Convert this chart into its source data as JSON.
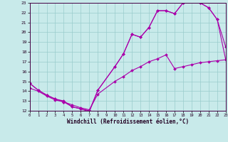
{
  "bg_color": "#c8eaea",
  "line_color": "#aa00aa",
  "grid_color": "#99cccc",
  "xlabel": "Windchill (Refroidissement éolien,°C)",
  "xmin": 0,
  "xmax": 23,
  "ymin": 12,
  "ymax": 23,
  "line1_x": [
    0,
    1,
    2,
    3,
    4,
    5,
    6,
    7,
    8,
    10,
    11,
    12,
    13,
    14,
    15,
    16,
    17,
    18,
    19,
    20,
    21,
    22,
    23
  ],
  "line1_y": [
    14.8,
    14.1,
    13.6,
    13.2,
    13.0,
    12.4,
    12.2,
    11.9,
    14.1,
    16.5,
    17.8,
    19.8,
    19.5,
    20.5,
    22.2,
    22.2,
    21.9,
    23.0,
    23.2,
    23.0,
    22.5,
    21.3,
    18.5
  ],
  "line2_x": [
    0,
    1,
    2,
    3,
    4,
    5,
    6,
    7,
    8,
    10,
    11,
    12,
    13,
    14,
    15,
    16,
    17,
    18,
    19,
    20,
    21,
    22,
    23
  ],
  "line2_y": [
    14.8,
    14.1,
    13.6,
    13.2,
    12.9,
    12.4,
    12.2,
    12.0,
    14.1,
    16.5,
    17.8,
    19.8,
    19.5,
    20.5,
    22.2,
    22.2,
    21.9,
    23.0,
    23.2,
    23.0,
    22.5,
    21.3,
    17.2
  ],
  "line3_x": [
    0,
    1,
    2,
    3,
    4,
    5,
    6,
    7,
    8,
    10,
    11,
    12,
    13,
    14,
    15,
    16,
    17,
    18,
    19,
    20,
    21,
    22,
    23
  ],
  "line3_y": [
    14.3,
    14.0,
    13.5,
    13.1,
    12.9,
    12.6,
    12.3,
    12.1,
    13.7,
    15.0,
    15.5,
    16.1,
    16.5,
    17.0,
    17.3,
    17.7,
    16.3,
    16.5,
    16.7,
    16.9,
    17.0,
    17.1,
    17.2
  ],
  "xticks": [
    0,
    1,
    2,
    3,
    4,
    5,
    6,
    7,
    8,
    9,
    10,
    11,
    12,
    13,
    14,
    15,
    16,
    17,
    18,
    19,
    20,
    21,
    22,
    23
  ],
  "yticks": [
    12,
    13,
    14,
    15,
    16,
    17,
    18,
    19,
    20,
    21,
    22,
    23
  ]
}
